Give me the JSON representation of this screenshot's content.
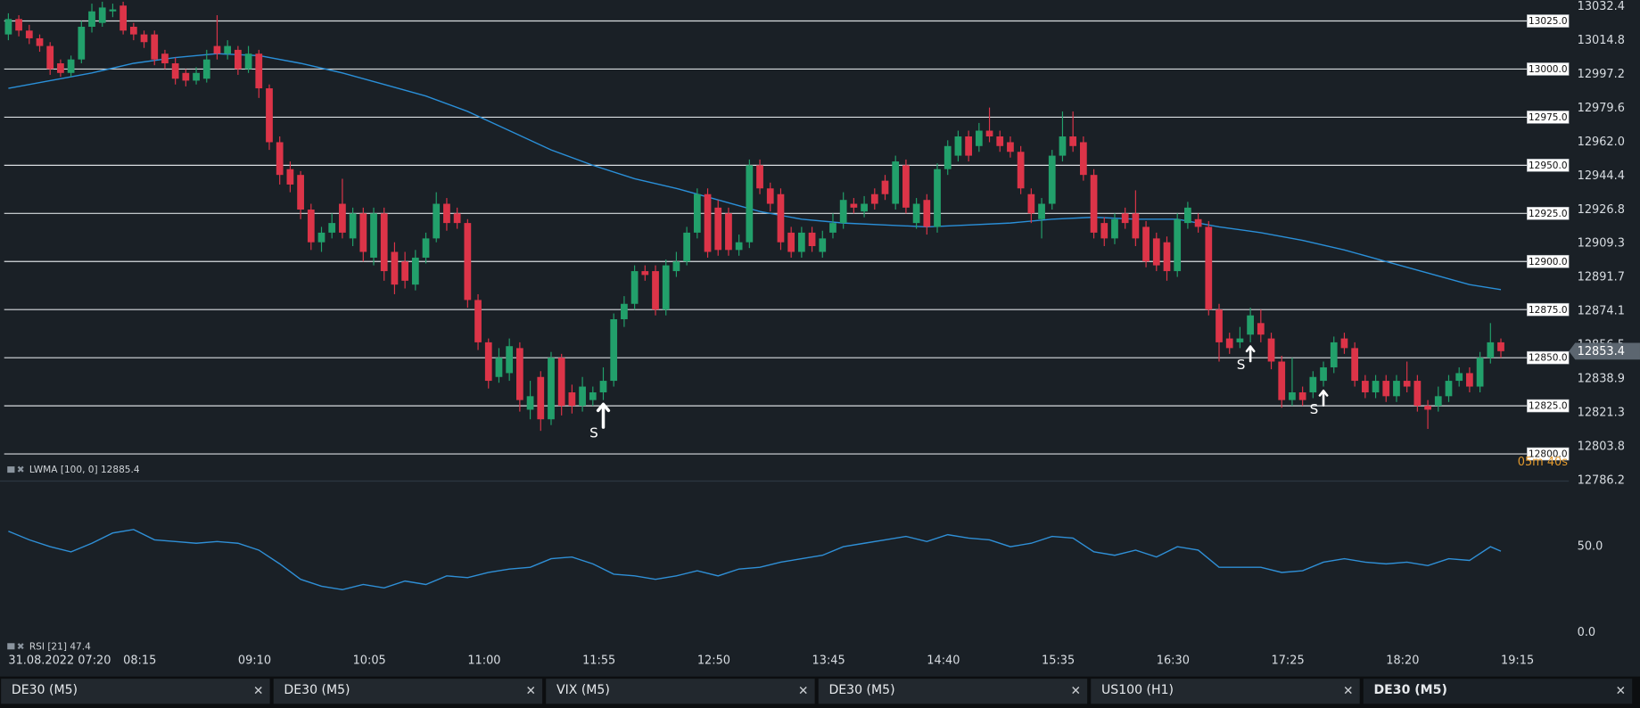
{
  "chart_data": [
    {
      "type": "candlestick",
      "xlim": [
        0,
        143
      ],
      "ylim": [
        12785.9,
        13035.9
      ],
      "yticks": [
        13032.4,
        13014.8,
        12997.2,
        12979.6,
        {
          "value": 12962,
          "label": "12962.0"
        },
        12944.4,
        12926.8,
        12909.3,
        12891.7,
        12874.1,
        12856.5,
        12838.9,
        12821.3,
        12803.8,
        12786.2
      ],
      "levels": [
        {
          "value": 13025,
          "label": "13025.0"
        },
        {
          "value": 13000,
          "label": "13000.0"
        },
        {
          "value": 12975,
          "label": "12975.0"
        },
        {
          "value": 12950,
          "label": "12950.0"
        },
        {
          "value": 12925,
          "label": "12925.0"
        },
        {
          "value": 12900,
          "label": "12900.0"
        },
        {
          "value": 12875,
          "label": "12875.0"
        },
        {
          "value": 12850,
          "label": "12850.0"
        },
        {
          "value": 12825,
          "label": "12825.0"
        },
        {
          "value": 12800,
          "label": "12800.0"
        }
      ],
      "up_color": "#22a06b",
      "down_color": "#dc3448",
      "open": [
        13018,
        13026,
        13020,
        13016,
        13012,
        13003,
        12998,
        13005,
        13022,
        13024,
        13030,
        13033,
        13022,
        13018,
        13018,
        13008,
        13003,
        12998,
        12994,
        12995,
        13012,
        13008,
        13010,
        13000,
        13008,
        12990,
        12962,
        12948,
        12945,
        12927,
        12910,
        12915,
        12930,
        12912,
        12925,
        12902,
        12925,
        12905,
        12900,
        12888,
        12902,
        12912,
        12930,
        12925,
        12920,
        12880,
        12858,
        12840,
        12842,
        12855,
        12823,
        12840,
        12818,
        12850,
        12832,
        12825,
        12828,
        12832,
        12838,
        12870,
        12878,
        12895,
        12895,
        12875,
        12895,
        12900,
        12915,
        12935,
        12928,
        12925,
        12906,
        12910,
        12950,
        12938,
        12935,
        12915,
        12905,
        12915,
        12905,
        12915,
        12920,
        12930,
        12926,
        12935,
        12942,
        12930,
        12950,
        12920,
        12932,
        12918,
        12948,
        12955,
        12965,
        12960,
        12968,
        12965,
        12962,
        12957,
        12935,
        12922,
        12930,
        12955,
        12965,
        12962,
        12945,
        12920,
        12912,
        12925,
        12925,
        12918,
        12912,
        12910,
        12895,
        12920,
        12922,
        12918,
        12875,
        12860,
        12858,
        12862,
        12868,
        12860,
        12848,
        12828,
        12832,
        12832,
        12838,
        12845,
        12860,
        12855,
        12838,
        12832,
        12838,
        12830,
        12838,
        12838,
        12825,
        12825,
        12830,
        12838,
        12842,
        12835,
        12850,
        12858
      ],
      "high": [
        13029,
        13028,
        13023,
        13018,
        13014,
        13005,
        13007,
        13025,
        13034,
        13035,
        13034,
        13035,
        13024,
        13020,
        13020,
        13010,
        13006,
        13000,
        13001,
        13010,
        13028,
        13015,
        13012,
        13012,
        13010,
        12992,
        12965,
        12952,
        12947,
        12930,
        12918,
        12925,
        12943,
        12928,
        12928,
        12928,
        12928,
        12910,
        12905,
        12906,
        12915,
        12936,
        12933,
        12928,
        12922,
        12883,
        12860,
        12855,
        12860,
        12858,
        12838,
        12843,
        12853,
        12852,
        12836,
        12840,
        12835,
        12845,
        12873,
        12882,
        12898,
        12898,
        12898,
        12901,
        12905,
        12918,
        12938,
        12938,
        12932,
        12928,
        12914,
        12953,
        12953,
        12941,
        12938,
        12918,
        12918,
        12918,
        12916,
        12925,
        12936,
        12933,
        12934,
        12938,
        12945,
        12955,
        12953,
        12933,
        12935,
        12951,
        12963,
        12968,
        12968,
        12972,
        12980,
        12968,
        12965,
        12960,
        12938,
        12933,
        12958,
        12978,
        12978,
        12965,
        12948,
        12923,
        12925,
        12928,
        12937,
        12921,
        12915,
        12913,
        12925,
        12931,
        12925,
        12921,
        12878,
        12863,
        12866,
        12876,
        12875,
        12863,
        12851,
        12850,
        12835,
        12843,
        12848,
        12861,
        12863,
        12858,
        12841,
        12841,
        12841,
        12841,
        12848,
        12841,
        12828,
        12835,
        12841,
        12845,
        12845,
        12853,
        12868,
        12860
      ],
      "low": [
        13015,
        13017,
        13013,
        13009,
        12997,
        12996,
        12996,
        13003,
        13019,
        13022,
        13027,
        13018,
        13015,
        13011,
        13002,
        13000,
        12992,
        12991,
        12992,
        12993,
        13005,
        13005,
        12997,
        12998,
        12985,
        12958,
        12940,
        12936,
        12922,
        12906,
        12905,
        12912,
        12912,
        12908,
        12900,
        12898,
        12890,
        12883,
        12886,
        12885,
        12899,
        12910,
        12916,
        12917,
        12876,
        12854,
        12834,
        12837,
        12838,
        12822,
        12818,
        12812,
        12815,
        12820,
        12821,
        12822,
        12825,
        12828,
        12835,
        12866,
        12875,
        12890,
        12872,
        12872,
        12892,
        12898,
        12912,
        12902,
        12903,
        12903,
        12903,
        12907,
        12935,
        12926,
        12906,
        12902,
        12902,
        12905,
        12902,
        12912,
        12917,
        12925,
        12923,
        12927,
        12932,
        12927,
        12925,
        12917,
        12914,
        12915,
        12945,
        12952,
        12952,
        12957,
        12962,
        12957,
        12954,
        12935,
        12920,
        12912,
        12927,
        12952,
        12957,
        12942,
        12912,
        12908,
        12909,
        12917,
        12908,
        12897,
        12895,
        12890,
        12892,
        12917,
        12915,
        12872,
        12848,
        12852,
        12855,
        12858,
        12858,
        12844,
        12824,
        12825,
        12825,
        12829,
        12835,
        12842,
        12852,
        12835,
        12829,
        12829,
        12827,
        12827,
        12832,
        12822,
        12813,
        12822,
        12827,
        12835,
        12832,
        12832,
        12847,
        12850
      ],
      "close": [
        13026,
        13020,
        13016,
        13012,
        13000,
        12998,
        13005,
        13022,
        13030,
        13032,
        13031,
        13020,
        13018,
        13014,
        13005,
        13003,
        12995,
        12994,
        12998,
        13005,
        13008,
        13012,
        13000,
        13008,
        12990,
        12962,
        12945,
        12940,
        12927,
        12910,
        12915,
        12920,
        12915,
        12925,
        12905,
        12925,
        12895,
        12888,
        12890,
        12902,
        12912,
        12930,
        12920,
        12920,
        12880,
        12858,
        12838,
        12850,
        12856,
        12828,
        12830,
        12818,
        12850,
        12825,
        12825,
        12835,
        12832,
        12838,
        12870,
        12878,
        12895,
        12893,
        12875,
        12898,
        12900,
        12915,
        12935,
        12905,
        12906,
        12906,
        12910,
        12950,
        12938,
        12930,
        12910,
        12905,
        12915,
        12908,
        12912,
        12920,
        12932,
        12928,
        12930,
        12930,
        12935,
        12952,
        12928,
        12930,
        12918,
        12948,
        12960,
        12965,
        12955,
        12968,
        12965,
        12960,
        12957,
        12938,
        12925,
        12930,
        12955,
        12965,
        12960,
        12945,
        12915,
        12912,
        12922,
        12920,
        12912,
        12900,
        12898,
        12895,
        12922,
        12928,
        12918,
        12875,
        12858,
        12855,
        12860,
        12872,
        12862,
        12848,
        12828,
        12832,
        12828,
        12840,
        12845,
        12858,
        12855,
        12838,
        12832,
        12838,
        12830,
        12838,
        12835,
        12825,
        12823,
        12830,
        12838,
        12842,
        12835,
        12850,
        12858,
        12853.4
      ],
      "last_price": 12853.4,
      "countdown": "05m 40s",
      "signals": [
        {
          "index": 57,
          "label": "S"
        },
        {
          "index": 119,
          "label": "S"
        },
        {
          "index": 126,
          "label": "S"
        }
      ],
      "series": [
        {
          "name": "LWMA [100, 0] 12885.4",
          "color": "#2a8fd8",
          "x": [
            0,
            4,
            8,
            12,
            16,
            20,
            24,
            28,
            32,
            36,
            40,
            44,
            48,
            52,
            56,
            60,
            64,
            68,
            72,
            76,
            80,
            84,
            88,
            92,
            96,
            100,
            104,
            108,
            112,
            116,
            120,
            124,
            128,
            132,
            136,
            140,
            143
          ],
          "values": [
            12990,
            12994,
            12998,
            13003,
            13006,
            13008,
            13007,
            13003,
            12998,
            12992,
            12986,
            12978,
            12968,
            12958,
            12950,
            12943,
            12938,
            12932,
            12926,
            12922,
            12920,
            12919,
            12918,
            12919,
            12920,
            12922,
            12923,
            12922,
            12922,
            12918,
            12915,
            12911,
            12906,
            12900,
            12894,
            12888,
            12885.4
          ]
        }
      ]
    },
    {
      "type": "line",
      "title": "RSI [21] 47.4",
      "color": "#2f8fd6",
      "xlim": [
        0,
        143
      ],
      "ylim": [
        -8,
        87
      ],
      "yticks": [
        {
          "value": 50,
          "label": "50.0"
        },
        {
          "value": 0,
          "label": "0.0"
        }
      ],
      "xticks": [
        {
          "value": 0,
          "label": "31.08.2022 07:20"
        },
        {
          "value": 11,
          "label": "08:15"
        },
        {
          "value": 22,
          "label": "09:10"
        },
        {
          "value": 33,
          "label": "10:05"
        },
        {
          "value": 44,
          "label": "11:00"
        },
        {
          "value": 55,
          "label": "11:55"
        },
        {
          "value": 66,
          "label": "12:50"
        },
        {
          "value": 77,
          "label": "13:45"
        },
        {
          "value": 88,
          "label": "14:40"
        },
        {
          "value": 99,
          "label": "15:35"
        },
        {
          "value": 110,
          "label": "16:30"
        },
        {
          "value": 121,
          "label": "17:25"
        },
        {
          "value": 132,
          "label": "18:20"
        },
        {
          "value": 143,
          "label": "19:15"
        }
      ],
      "x": [
        0,
        2,
        4,
        6,
        8,
        10,
        12,
        14,
        16,
        18,
        20,
        22,
        24,
        26,
        28,
        30,
        32,
        34,
        36,
        38,
        40,
        42,
        44,
        46,
        48,
        50,
        52,
        54,
        56,
        58,
        60,
        62,
        64,
        66,
        68,
        70,
        72,
        74,
        76,
        78,
        80,
        82,
        84,
        86,
        88,
        90,
        92,
        94,
        96,
        98,
        100,
        102,
        104,
        106,
        108,
        110,
        112,
        114,
        116,
        118,
        120,
        122,
        124,
        126,
        128,
        130,
        132,
        134,
        136,
        138,
        140,
        142,
        143
      ],
      "values": [
        59,
        54,
        50,
        47,
        52,
        58,
        60,
        54,
        53,
        52,
        53,
        52,
        48,
        40,
        31,
        27,
        25,
        28,
        26,
        30,
        28,
        33,
        32,
        35,
        37,
        38,
        43,
        44,
        40,
        34,
        33,
        31,
        33,
        36,
        33,
        37,
        38,
        41,
        43,
        45,
        50,
        52,
        54,
        56,
        53,
        57,
        55,
        54,
        50,
        52,
        56,
        55,
        47,
        45,
        48,
        44,
        50,
        48,
        38,
        38,
        38,
        35,
        36,
        41,
        43,
        41,
        40,
        41,
        39,
        43,
        42,
        50,
        47.4
      ]
    }
  ],
  "tabs": [
    {
      "label": "DE30 (M5)",
      "active": false
    },
    {
      "label": "DE30 (M5)",
      "active": false
    },
    {
      "label": "VIX (M5)",
      "active": false
    },
    {
      "label": "DE30 (M5)",
      "active": false
    },
    {
      "label": "US100 (H1)",
      "active": false
    },
    {
      "label": "DE30 (M5)",
      "active": true
    }
  ]
}
